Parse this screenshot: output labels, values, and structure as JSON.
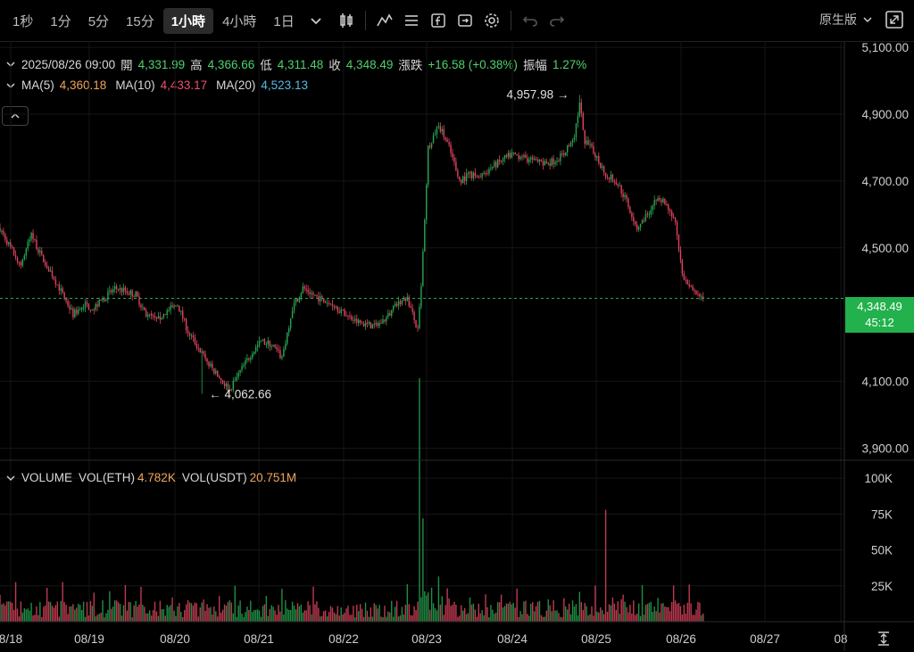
{
  "toolbar": {
    "timeframes": [
      "1秒",
      "1分",
      "5分",
      "15分",
      "1小時",
      "4小時",
      "1日"
    ],
    "active_timeframe": "1小時",
    "layout_label": "原生版"
  },
  "ohlc": {
    "datetime": "2025/08/26 09:00",
    "open_label": "開",
    "open": "4,331.99",
    "high_label": "高",
    "high": "4,366.66",
    "low_label": "低",
    "low": "4,311.48",
    "close_label": "收",
    "close": "4,348.49",
    "change_label": "漲跌",
    "change": "+16.58 (+0.38%)",
    "amplitude_label": "振幅",
    "amplitude": "1.27%"
  },
  "ma": {
    "ma5_label": "MA(5)",
    "ma5": "4,360.18",
    "ma10_label": "MA(10)",
    "ma10": "4,433.17",
    "ma20_label": "MA(20)",
    "ma20": "4,523.13"
  },
  "volume": {
    "title": "VOLUME",
    "eth_label": "VOL(ETH)",
    "eth": "4.782K",
    "usdt_label": "VOL(USDT)",
    "usdt": "20.751M"
  },
  "last_price": {
    "price": "4,348.49",
    "countdown": "45:12"
  },
  "colors": {
    "up": "#26a650",
    "down": "#e0435e",
    "ma5": "#f0a35a",
    "ma10": "#e9516e",
    "ma20": "#58b8e6"
  },
  "chart_data": {
    "type": "candlestick",
    "price_axis": {
      "ticks": [
        "5,100.00",
        "4,900.00",
        "4,700.00",
        "4,500.00",
        "4,100.00",
        "3,900.00"
      ],
      "ylim": [
        3880,
        5135
      ]
    },
    "volume_axis": {
      "ticks": [
        "100K",
        "75K",
        "50K",
        "25K"
      ],
      "ylim": [
        0,
        110000
      ]
    },
    "x_ticks": [
      "8/18",
      "08/19",
      "08/20",
      "08/21",
      "08/22",
      "08/23",
      "08/24",
      "08/25",
      "08/26",
      "08/27",
      "08"
    ],
    "annotations": {
      "high": "4,957.98",
      "low": "4,062.66"
    },
    "high_value": 4957.98,
    "low_value": 4062.66,
    "last_price_value": 4348.49,
    "close_path": [
      [
        0,
        4560
      ],
      [
        6,
        4500
      ],
      [
        12,
        4450
      ],
      [
        18,
        4540
      ],
      [
        24,
        4470
      ],
      [
        30,
        4420
      ],
      [
        36,
        4360
      ],
      [
        42,
        4300
      ],
      [
        48,
        4330
      ],
      [
        54,
        4320
      ],
      [
        60,
        4350
      ],
      [
        66,
        4380
      ],
      [
        72,
        4370
      ],
      [
        78,
        4360
      ],
      [
        84,
        4300
      ],
      [
        90,
        4280
      ],
      [
        96,
        4310
      ],
      [
        102,
        4330
      ],
      [
        108,
        4250
      ],
      [
        114,
        4200
      ],
      [
        120,
        4150
      ],
      [
        126,
        4110
      ],
      [
        132,
        4075
      ],
      [
        138,
        4130
      ],
      [
        144,
        4180
      ],
      [
        150,
        4220
      ],
      [
        156,
        4210
      ],
      [
        162,
        4170
      ],
      [
        168,
        4320
      ],
      [
        174,
        4380
      ],
      [
        180,
        4360
      ],
      [
        186,
        4340
      ],
      [
        192,
        4330
      ],
      [
        198,
        4300
      ],
      [
        204,
        4280
      ],
      [
        210,
        4270
      ],
      [
        216,
        4265
      ],
      [
        222,
        4290
      ],
      [
        228,
        4330
      ],
      [
        234,
        4350
      ],
      [
        240,
        4250
      ],
      [
        242,
        4380
      ],
      [
        246,
        4800
      ],
      [
        252,
        4870
      ],
      [
        258,
        4800
      ],
      [
        264,
        4700
      ],
      [
        270,
        4720
      ],
      [
        276,
        4710
      ],
      [
        282,
        4740
      ],
      [
        288,
        4760
      ],
      [
        294,
        4780
      ],
      [
        300,
        4770
      ],
      [
        306,
        4760
      ],
      [
        312,
        4750
      ],
      [
        318,
        4760
      ],
      [
        324,
        4780
      ],
      [
        330,
        4840
      ],
      [
        333,
        4930
      ],
      [
        336,
        4820
      ],
      [
        342,
        4780
      ],
      [
        348,
        4720
      ],
      [
        354,
        4700
      ],
      [
        360,
        4640
      ],
      [
        366,
        4560
      ],
      [
        372,
        4600
      ],
      [
        378,
        4660
      ],
      [
        384,
        4620
      ],
      [
        388,
        4580
      ],
      [
        392,
        4420
      ],
      [
        396,
        4380
      ],
      [
        400,
        4360
      ],
      [
        404,
        4340
      ]
    ]
  }
}
